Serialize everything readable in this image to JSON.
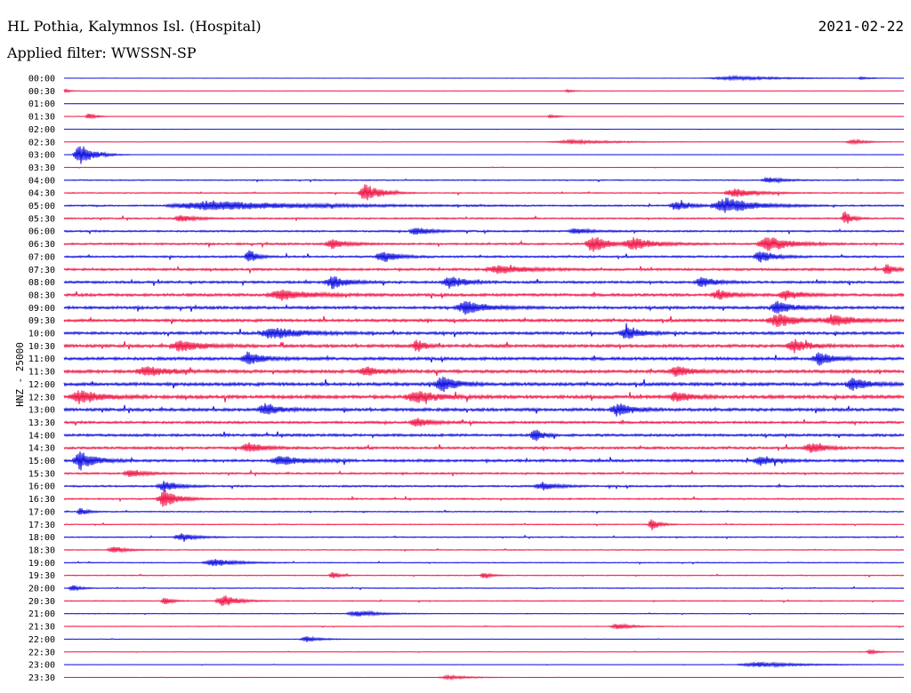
{
  "header": {
    "station": "HL Pothia, Kalymnos Isl. (Hospital)",
    "date": "2021-02-22",
    "filter": "Applied filter: WWSSN-SP",
    "channel": "HNZ - 25000"
  },
  "colors": {
    "blue": "#1010e0",
    "red": "#f01848"
  },
  "chart_data": {
    "type": "line",
    "title": "HL Pothia, Kalymnos Isl. (Hospital)",
    "ylabel": "HNZ - 25000",
    "grid": false,
    "rows": [
      {
        "time": "00:00",
        "color": "blue",
        "level": 0.03,
        "events": [
          [
            0.8,
            0.4,
            0.08,
            0.9
          ],
          [
            0.95,
            0.3,
            0.01,
            0.5
          ]
        ]
      },
      {
        "time": "00:30",
        "color": "red",
        "level": 0.03,
        "events": [
          [
            0.0,
            0.4,
            0.01,
            0.7
          ],
          [
            0.6,
            0.3,
            0.01,
            0.6
          ]
        ]
      },
      {
        "time": "01:00",
        "color": "blue",
        "level": 0.02,
        "events": []
      },
      {
        "time": "01:30",
        "color": "red",
        "level": 0.05,
        "events": [
          [
            0.03,
            0.6,
            0.01,
            0.6
          ],
          [
            0.58,
            0.4,
            0.01,
            0.5
          ]
        ]
      },
      {
        "time": "02:00",
        "color": "blue",
        "level": 0.02,
        "events": []
      },
      {
        "time": "02:30",
        "color": "red",
        "level": 0.06,
        "events": [
          [
            0.61,
            0.4,
            0.07,
            0.9
          ],
          [
            0.94,
            0.5,
            0.02,
            0.8
          ]
        ]
      },
      {
        "time": "03:00",
        "color": "blue",
        "level": 0.04,
        "events": [
          [
            0.02,
            2.2,
            0.02,
            1.0
          ]
        ]
      },
      {
        "time": "03:30",
        "color": "red",
        "level": 0.1,
        "events": []
      },
      {
        "time": "04:00",
        "color": "blue",
        "level": 0.25,
        "events": [
          [
            0.84,
            0.6,
            0.02,
            0.8
          ]
        ]
      },
      {
        "time": "04:30",
        "color": "red",
        "level": 0.25,
        "events": [
          [
            0.36,
            1.9,
            0.02,
            1.0
          ],
          [
            0.8,
            0.9,
            0.03,
            0.9
          ]
        ]
      },
      {
        "time": "05:00",
        "color": "blue",
        "level": 0.35,
        "events": [
          [
            0.18,
            1.0,
            0.12,
            1.1
          ],
          [
            0.73,
            1.0,
            0.02,
            0.9
          ],
          [
            0.79,
            1.6,
            0.04,
            1.0
          ]
        ]
      },
      {
        "time": "05:30",
        "color": "red",
        "level": 0.35,
        "events": [
          [
            0.14,
            0.7,
            0.02,
            0.8
          ],
          [
            0.93,
            1.4,
            0.01,
            1.0
          ]
        ]
      },
      {
        "time": "06:00",
        "color": "blue",
        "level": 0.4,
        "events": [
          [
            0.42,
            0.8,
            0.02,
            0.9
          ],
          [
            0.61,
            0.6,
            0.02,
            0.8
          ]
        ]
      },
      {
        "time": "06:30",
        "color": "red",
        "level": 0.45,
        "events": [
          [
            0.32,
            1.0,
            0.02,
            0.9
          ],
          [
            0.63,
            1.8,
            0.02,
            1.0
          ],
          [
            0.68,
            1.2,
            0.03,
            1.0
          ],
          [
            0.84,
            1.5,
            0.03,
            1.0
          ]
        ]
      },
      {
        "time": "07:00",
        "color": "blue",
        "level": 0.45,
        "events": [
          [
            0.22,
            1.7,
            0.01,
            1.0
          ],
          [
            0.38,
            1.2,
            0.02,
            0.9
          ],
          [
            0.83,
            1.2,
            0.02,
            0.9
          ]
        ]
      },
      {
        "time": "07:30",
        "color": "red",
        "level": 0.55,
        "events": [
          [
            0.52,
            0.8,
            0.04,
            1.0
          ],
          [
            0.98,
            1.2,
            0.01,
            1.0
          ]
        ]
      },
      {
        "time": "08:00",
        "color": "blue",
        "level": 0.55,
        "events": [
          [
            0.32,
            1.3,
            0.02,
            1.0
          ],
          [
            0.46,
            1.3,
            0.02,
            1.0
          ],
          [
            0.76,
            1.0,
            0.02,
            0.9
          ]
        ]
      },
      {
        "time": "08:30",
        "color": "red",
        "level": 0.65,
        "events": [
          [
            0.26,
            1.0,
            0.04,
            1.0
          ],
          [
            0.78,
            1.0,
            0.02,
            0.9
          ],
          [
            0.86,
            1.0,
            0.02,
            1.0
          ]
        ]
      },
      {
        "time": "09:00",
        "color": "blue",
        "level": 0.65,
        "events": [
          [
            0.48,
            1.3,
            0.03,
            1.0
          ],
          [
            0.85,
            1.4,
            0.02,
            1.0
          ]
        ]
      },
      {
        "time": "09:30",
        "color": "red",
        "level": 0.65,
        "events": [
          [
            0.85,
            1.3,
            0.03,
            1.0
          ],
          [
            0.92,
            1.0,
            0.03,
            1.0
          ]
        ]
      },
      {
        "time": "10:00",
        "color": "blue",
        "level": 0.65,
        "events": [
          [
            0.25,
            1.1,
            0.04,
            1.0
          ],
          [
            0.67,
            1.3,
            0.02,
            1.0
          ]
        ]
      },
      {
        "time": "10:30",
        "color": "red",
        "level": 0.7,
        "events": [
          [
            0.14,
            1.1,
            0.03,
            1.0
          ],
          [
            0.42,
            1.4,
            0.01,
            1.0
          ],
          [
            0.87,
            1.3,
            0.02,
            1.0
          ]
        ]
      },
      {
        "time": "11:00",
        "color": "blue",
        "level": 0.7,
        "events": [
          [
            0.22,
            1.3,
            0.02,
            1.0
          ],
          [
            0.9,
            1.3,
            0.02,
            1.0
          ]
        ]
      },
      {
        "time": "11:30",
        "color": "red",
        "level": 0.75,
        "events": [
          [
            0.1,
            1.0,
            0.03,
            1.0
          ],
          [
            0.36,
            1.0,
            0.02,
            1.0
          ],
          [
            0.73,
            1.0,
            0.02,
            0.9
          ]
        ]
      },
      {
        "time": "12:00",
        "color": "blue",
        "level": 0.75,
        "events": [
          [
            0.45,
            1.6,
            0.02,
            1.0
          ],
          [
            0.94,
            1.3,
            0.02,
            1.0
          ]
        ]
      },
      {
        "time": "12:30",
        "color": "red",
        "level": 0.8,
        "events": [
          [
            0.02,
            1.3,
            0.03,
            1.0
          ],
          [
            0.42,
            1.2,
            0.03,
            1.0
          ],
          [
            0.73,
            1.0,
            0.02,
            0.9
          ]
        ]
      },
      {
        "time": "13:00",
        "color": "blue",
        "level": 0.7,
        "events": [
          [
            0.24,
            1.1,
            0.02,
            1.0
          ],
          [
            0.66,
            1.3,
            0.02,
            1.0
          ]
        ]
      },
      {
        "time": "13:30",
        "color": "red",
        "level": 0.55,
        "events": [
          [
            0.42,
            0.9,
            0.02,
            1.0
          ]
        ]
      },
      {
        "time": "14:00",
        "color": "blue",
        "level": 0.6,
        "events": [
          [
            0.56,
            1.5,
            0.01,
            1.0
          ]
        ]
      },
      {
        "time": "14:30",
        "color": "red",
        "level": 0.55,
        "events": [
          [
            0.22,
            1.0,
            0.02,
            0.9
          ],
          [
            0.89,
            1.0,
            0.02,
            1.0
          ]
        ]
      },
      {
        "time": "15:00",
        "color": "blue",
        "level": 0.6,
        "events": [
          [
            0.02,
            2.0,
            0.02,
            1.0
          ],
          [
            0.26,
            1.0,
            0.03,
            1.0
          ],
          [
            0.83,
            1.0,
            0.02,
            1.0
          ]
        ]
      },
      {
        "time": "15:30",
        "color": "red",
        "level": 0.4,
        "events": [
          [
            0.08,
            0.8,
            0.02,
            0.9
          ]
        ]
      },
      {
        "time": "16:00",
        "color": "blue",
        "level": 0.4,
        "events": [
          [
            0.12,
            1.0,
            0.02,
            1.0
          ],
          [
            0.57,
            0.8,
            0.02,
            1.0
          ]
        ]
      },
      {
        "time": "16:30",
        "color": "red",
        "level": 0.35,
        "events": [
          [
            0.12,
            1.8,
            0.02,
            1.0
          ]
        ]
      },
      {
        "time": "17:00",
        "color": "blue",
        "level": 0.25,
        "events": [
          [
            0.02,
            0.8,
            0.01,
            0.9
          ]
        ]
      },
      {
        "time": "17:30",
        "color": "red",
        "level": 0.2,
        "events": [
          [
            0.7,
            1.3,
            0.01,
            1.0
          ]
        ]
      },
      {
        "time": "18:00",
        "color": "blue",
        "level": 0.25,
        "events": [
          [
            0.14,
            0.8,
            0.02,
            1.0
          ]
        ]
      },
      {
        "time": "18:30",
        "color": "red",
        "level": 0.2,
        "events": [
          [
            0.06,
            0.6,
            0.02,
            0.9
          ]
        ]
      },
      {
        "time": "19:00",
        "color": "blue",
        "level": 0.2,
        "events": [
          [
            0.18,
            0.8,
            0.03,
            1.0
          ]
        ]
      },
      {
        "time": "19:30",
        "color": "red",
        "level": 0.2,
        "events": [
          [
            0.32,
            0.7,
            0.01,
            1.0
          ],
          [
            0.5,
            0.6,
            0.01,
            1.0
          ]
        ]
      },
      {
        "time": "20:00",
        "color": "blue",
        "level": 0.2,
        "events": [
          [
            0.01,
            0.7,
            0.01,
            1.0
          ]
        ]
      },
      {
        "time": "20:30",
        "color": "red",
        "level": 0.2,
        "events": [
          [
            0.12,
            0.8,
            0.01,
            1.0
          ],
          [
            0.19,
            1.3,
            0.02,
            1.0
          ]
        ]
      },
      {
        "time": "21:00",
        "color": "blue",
        "level": 0.15,
        "events": [
          [
            0.35,
            0.6,
            0.03,
            1.0
          ]
        ]
      },
      {
        "time": "21:30",
        "color": "red",
        "level": 0.15,
        "events": [
          [
            0.66,
            0.6,
            0.02,
            1.0
          ]
        ]
      },
      {
        "time": "22:00",
        "color": "blue",
        "level": 0.1,
        "events": [
          [
            0.29,
            0.6,
            0.02,
            1.0
          ]
        ]
      },
      {
        "time": "22:30",
        "color": "red",
        "level": 0.1,
        "events": [
          [
            0.96,
            0.5,
            0.01,
            1.0
          ]
        ]
      },
      {
        "time": "23:00",
        "color": "blue",
        "level": 0.08,
        "events": [
          [
            0.83,
            0.5,
            0.06,
            1.0
          ]
        ]
      },
      {
        "time": "23:30",
        "color": "red",
        "level": 0.05,
        "events": [
          [
            0.46,
            0.4,
            0.03,
            1.0
          ]
        ]
      }
    ]
  }
}
